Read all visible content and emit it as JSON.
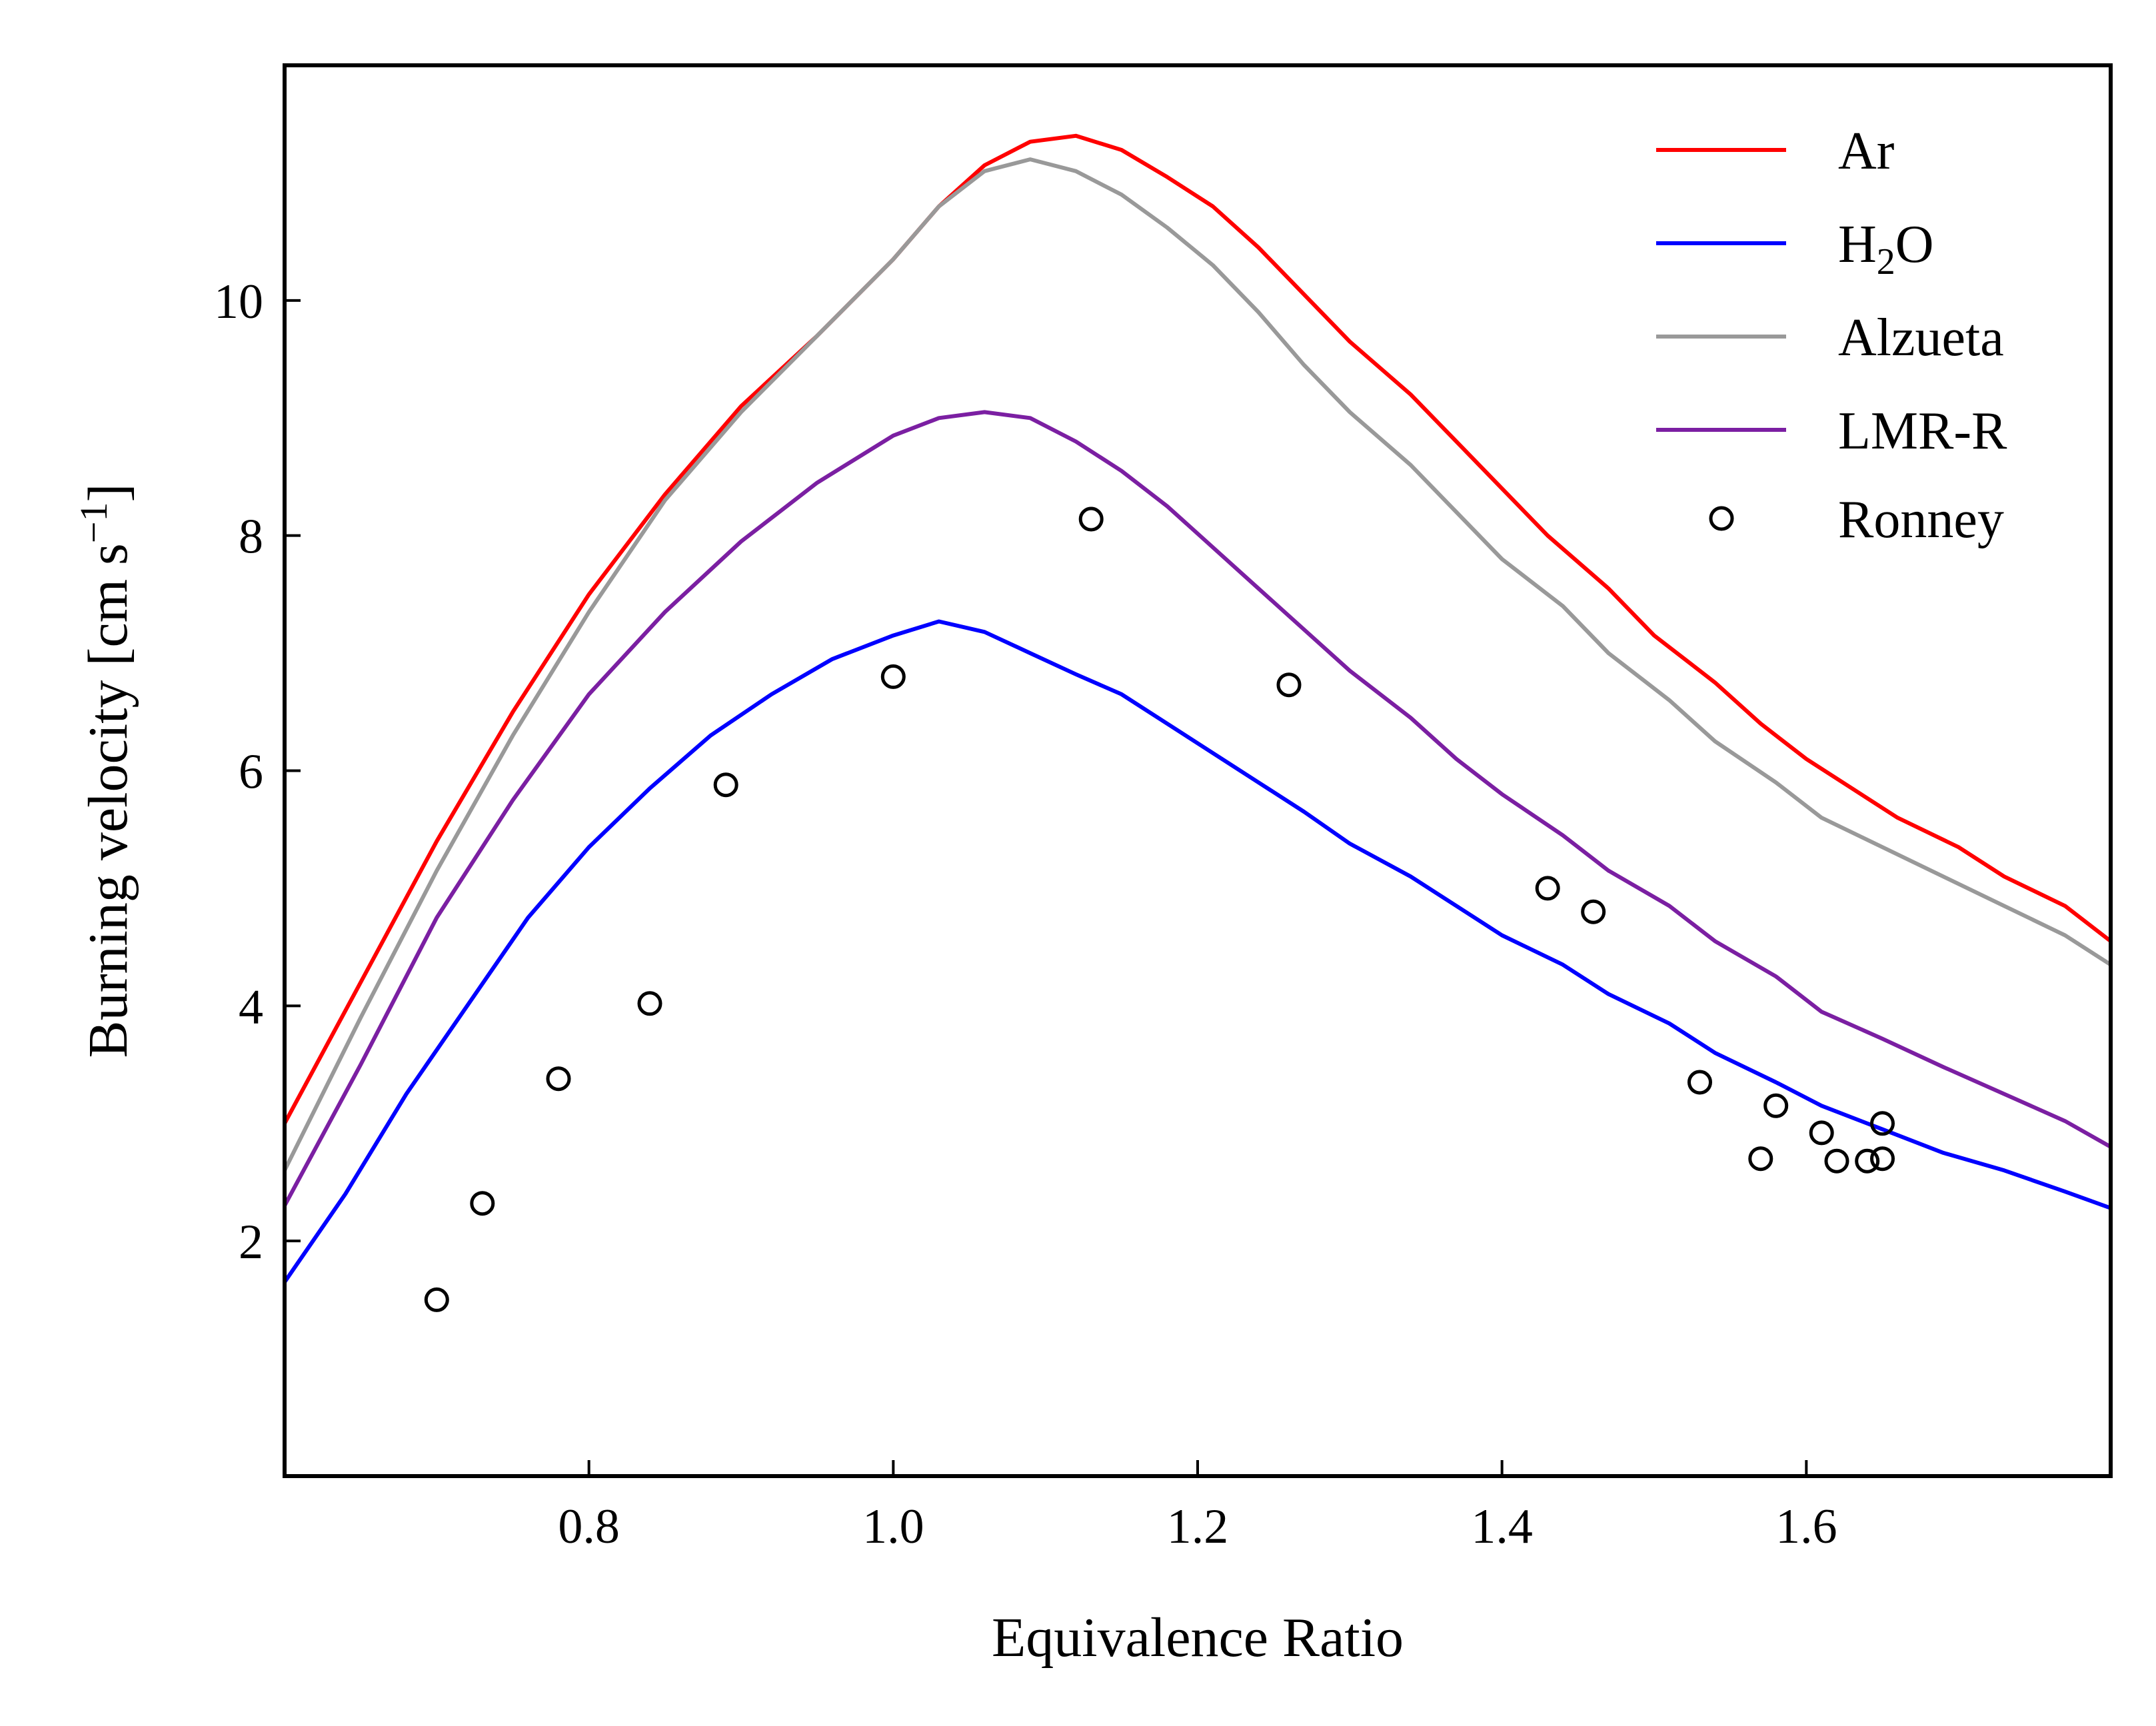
{
  "chart_data": {
    "type": "line",
    "xlabel": "Equivalence Ratio",
    "ylabel": "Burning velocity [cm s",
    "ylabel_unit_sup": "−1",
    "ylabel_close": "]",
    "xlim": [
      0.6,
      1.8
    ],
    "ylim": [
      0.0,
      12.0
    ],
    "xticks": [
      0.8,
      1.0,
      1.2,
      1.4,
      1.6
    ],
    "xtick_labels": [
      "0.8",
      "1.0",
      "1.2",
      "1.4",
      "1.6"
    ],
    "yticks": [
      2,
      4,
      6,
      8,
      10
    ],
    "ytick_labels": [
      "2",
      "4",
      "6",
      "8",
      "10"
    ],
    "grid": false,
    "legend_position": "top-right",
    "series": [
      {
        "name": "Ar",
        "color": "#ff0000",
        "points": [
          [
            0.6,
            3.0
          ],
          [
            0.65,
            4.2
          ],
          [
            0.7,
            5.4
          ],
          [
            0.75,
            6.5
          ],
          [
            0.8,
            7.5
          ],
          [
            0.85,
            8.35
          ],
          [
            0.9,
            9.1
          ],
          [
            0.95,
            9.7
          ],
          [
            1.0,
            10.35
          ],
          [
            1.03,
            10.8
          ],
          [
            1.06,
            11.15
          ],
          [
            1.09,
            11.35
          ],
          [
            1.12,
            11.4
          ],
          [
            1.15,
            11.28
          ],
          [
            1.18,
            11.05
          ],
          [
            1.21,
            10.8
          ],
          [
            1.24,
            10.45
          ],
          [
            1.27,
            10.05
          ],
          [
            1.3,
            9.65
          ],
          [
            1.34,
            9.2
          ],
          [
            1.37,
            8.8
          ],
          [
            1.4,
            8.4
          ],
          [
            1.43,
            8.0
          ],
          [
            1.47,
            7.55
          ],
          [
            1.5,
            7.15
          ],
          [
            1.54,
            6.75
          ],
          [
            1.57,
            6.4
          ],
          [
            1.6,
            6.1
          ],
          [
            1.63,
            5.85
          ],
          [
            1.66,
            5.6
          ],
          [
            1.7,
            5.35
          ],
          [
            1.73,
            5.1
          ],
          [
            1.77,
            4.85
          ],
          [
            1.8,
            4.55
          ]
        ]
      },
      {
        "name": "H",
        "name_sub": "2",
        "name_tail": "O",
        "color": "#0000ff",
        "points": [
          [
            0.6,
            1.65
          ],
          [
            0.64,
            2.4
          ],
          [
            0.68,
            3.25
          ],
          [
            0.72,
            4.0
          ],
          [
            0.76,
            4.75
          ],
          [
            0.8,
            5.35
          ],
          [
            0.84,
            5.85
          ],
          [
            0.88,
            6.3
          ],
          [
            0.92,
            6.65
          ],
          [
            0.96,
            6.95
          ],
          [
            1.0,
            7.15
          ],
          [
            1.03,
            7.27
          ],
          [
            1.06,
            7.18
          ],
          [
            1.09,
            7.0
          ],
          [
            1.12,
            6.82
          ],
          [
            1.15,
            6.65
          ],
          [
            1.18,
            6.4
          ],
          [
            1.21,
            6.15
          ],
          [
            1.24,
            5.9
          ],
          [
            1.27,
            5.65
          ],
          [
            1.3,
            5.38
          ],
          [
            1.34,
            5.1
          ],
          [
            1.37,
            4.85
          ],
          [
            1.4,
            4.6
          ],
          [
            1.44,
            4.35
          ],
          [
            1.47,
            4.1
          ],
          [
            1.51,
            3.85
          ],
          [
            1.54,
            3.6
          ],
          [
            1.58,
            3.35
          ],
          [
            1.61,
            3.15
          ],
          [
            1.65,
            2.95
          ],
          [
            1.69,
            2.75
          ],
          [
            1.73,
            2.6
          ],
          [
            1.77,
            2.42
          ],
          [
            1.8,
            2.28
          ]
        ]
      },
      {
        "name": "Alzueta",
        "color": "#999999",
        "points": [
          [
            0.6,
            2.6
          ],
          [
            0.65,
            3.9
          ],
          [
            0.7,
            5.15
          ],
          [
            0.75,
            6.3
          ],
          [
            0.8,
            7.35
          ],
          [
            0.85,
            8.3
          ],
          [
            0.9,
            9.05
          ],
          [
            0.95,
            9.7
          ],
          [
            1.0,
            10.35
          ],
          [
            1.03,
            10.8
          ],
          [
            1.06,
            11.1
          ],
          [
            1.09,
            11.2
          ],
          [
            1.12,
            11.1
          ],
          [
            1.15,
            10.9
          ],
          [
            1.18,
            10.62
          ],
          [
            1.21,
            10.3
          ],
          [
            1.24,
            9.9
          ],
          [
            1.27,
            9.45
          ],
          [
            1.3,
            9.05
          ],
          [
            1.34,
            8.6
          ],
          [
            1.37,
            8.2
          ],
          [
            1.4,
            7.8
          ],
          [
            1.44,
            7.4
          ],
          [
            1.47,
            7.0
          ],
          [
            1.51,
            6.6
          ],
          [
            1.54,
            6.25
          ],
          [
            1.58,
            5.9
          ],
          [
            1.61,
            5.6
          ],
          [
            1.65,
            5.35
          ],
          [
            1.69,
            5.1
          ],
          [
            1.73,
            4.85
          ],
          [
            1.77,
            4.6
          ],
          [
            1.8,
            4.35
          ]
        ]
      },
      {
        "name": "LMR-R",
        "color": "#7b1fa2",
        "points": [
          [
            0.6,
            2.3
          ],
          [
            0.65,
            3.5
          ],
          [
            0.7,
            4.75
          ],
          [
            0.75,
            5.75
          ],
          [
            0.8,
            6.65
          ],
          [
            0.85,
            7.35
          ],
          [
            0.9,
            7.95
          ],
          [
            0.95,
            8.45
          ],
          [
            1.0,
            8.85
          ],
          [
            1.03,
            9.0
          ],
          [
            1.06,
            9.05
          ],
          [
            1.09,
            9.0
          ],
          [
            1.12,
            8.8
          ],
          [
            1.15,
            8.55
          ],
          [
            1.18,
            8.25
          ],
          [
            1.21,
            7.9
          ],
          [
            1.24,
            7.55
          ],
          [
            1.27,
            7.2
          ],
          [
            1.3,
            6.85
          ],
          [
            1.34,
            6.45
          ],
          [
            1.37,
            6.1
          ],
          [
            1.4,
            5.8
          ],
          [
            1.44,
            5.45
          ],
          [
            1.47,
            5.15
          ],
          [
            1.51,
            4.85
          ],
          [
            1.54,
            4.55
          ],
          [
            1.58,
            4.25
          ],
          [
            1.61,
            3.95
          ],
          [
            1.65,
            3.72
          ],
          [
            1.69,
            3.48
          ],
          [
            1.73,
            3.25
          ],
          [
            1.77,
            3.02
          ],
          [
            1.8,
            2.8
          ]
        ]
      }
    ],
    "scatter": {
      "name": "Ronney",
      "color": "#000000",
      "points": [
        [
          0.7,
          1.5
        ],
        [
          0.73,
          2.32
        ],
        [
          0.78,
          3.38
        ],
        [
          0.84,
          4.02
        ],
        [
          0.89,
          5.88
        ],
        [
          1.0,
          6.8
        ],
        [
          1.13,
          8.14
        ],
        [
          1.26,
          6.73
        ],
        [
          1.43,
          5.0
        ],
        [
          1.46,
          4.8
        ],
        [
          1.53,
          3.35
        ],
        [
          1.57,
          2.7
        ],
        [
          1.58,
          3.15
        ],
        [
          1.61,
          2.92
        ],
        [
          1.62,
          2.68
        ],
        [
          1.64,
          2.68
        ],
        [
          1.65,
          3.0
        ],
        [
          1.65,
          2.7
        ]
      ]
    }
  }
}
